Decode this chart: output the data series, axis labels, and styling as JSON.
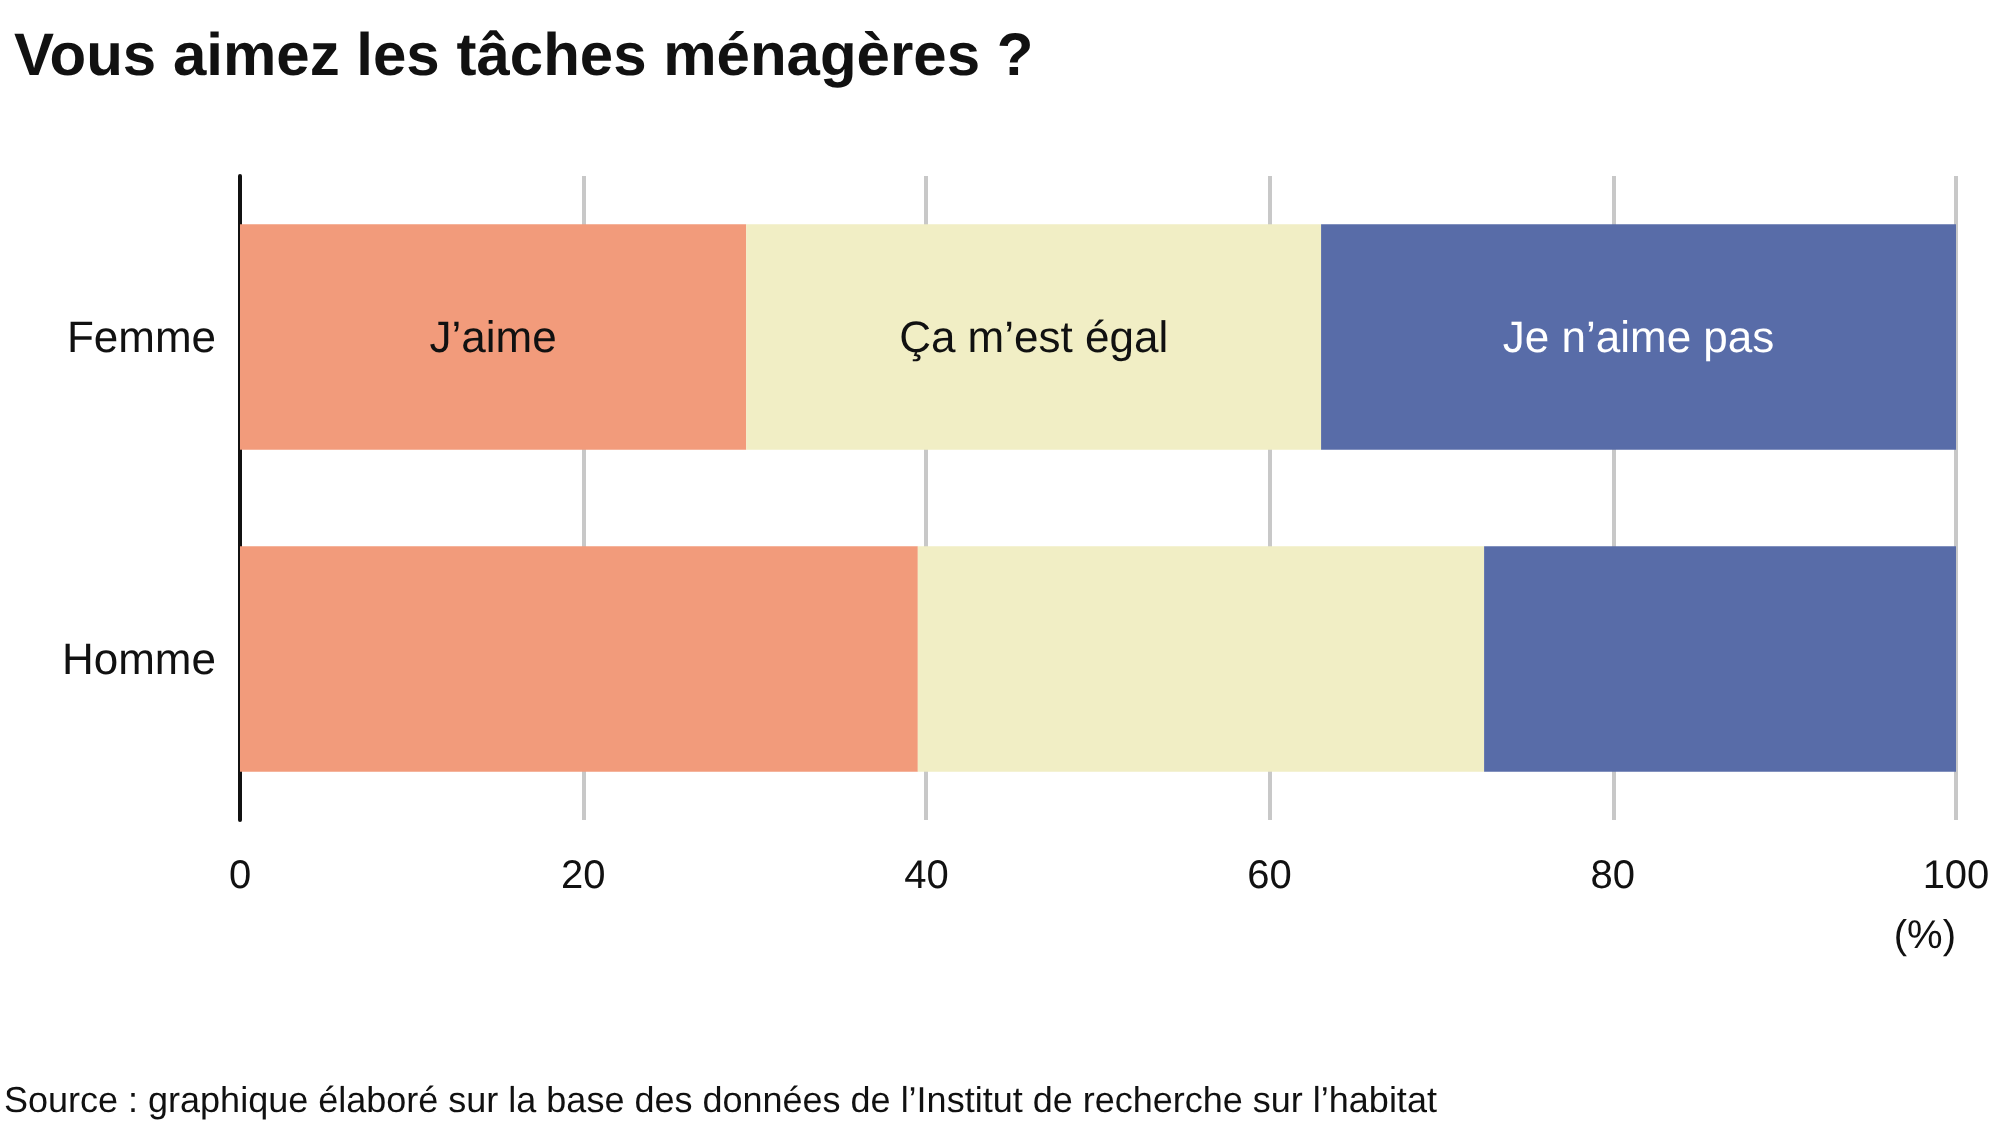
{
  "chart_data": {
    "type": "bar",
    "orientation": "horizontal",
    "stacked": true,
    "title": "Vous aimez les tâches ménagères ?",
    "xlabel": "(%)",
    "categories": [
      "Femme",
      "Homme"
    ],
    "series": [
      {
        "name": "J’aime",
        "color": "#f29b7b",
        "values": [
          29.5,
          39.5
        ]
      },
      {
        "name": "Ça m’est égal",
        "color": "#f1eec5",
        "values": [
          33.5,
          33
        ]
      },
      {
        "name": "Je n’aime pas",
        "color": "#586ca8",
        "values": [
          37,
          27.5
        ]
      }
    ],
    "xlim": [
      0,
      100
    ],
    "xticks": [
      0,
      20,
      40,
      60,
      80,
      100
    ],
    "grid": "x",
    "legend": false,
    "annotations": [
      "Source : graphique élaboré sur la base des données de l’Institut de recherche sur l’habitat"
    ]
  }
}
